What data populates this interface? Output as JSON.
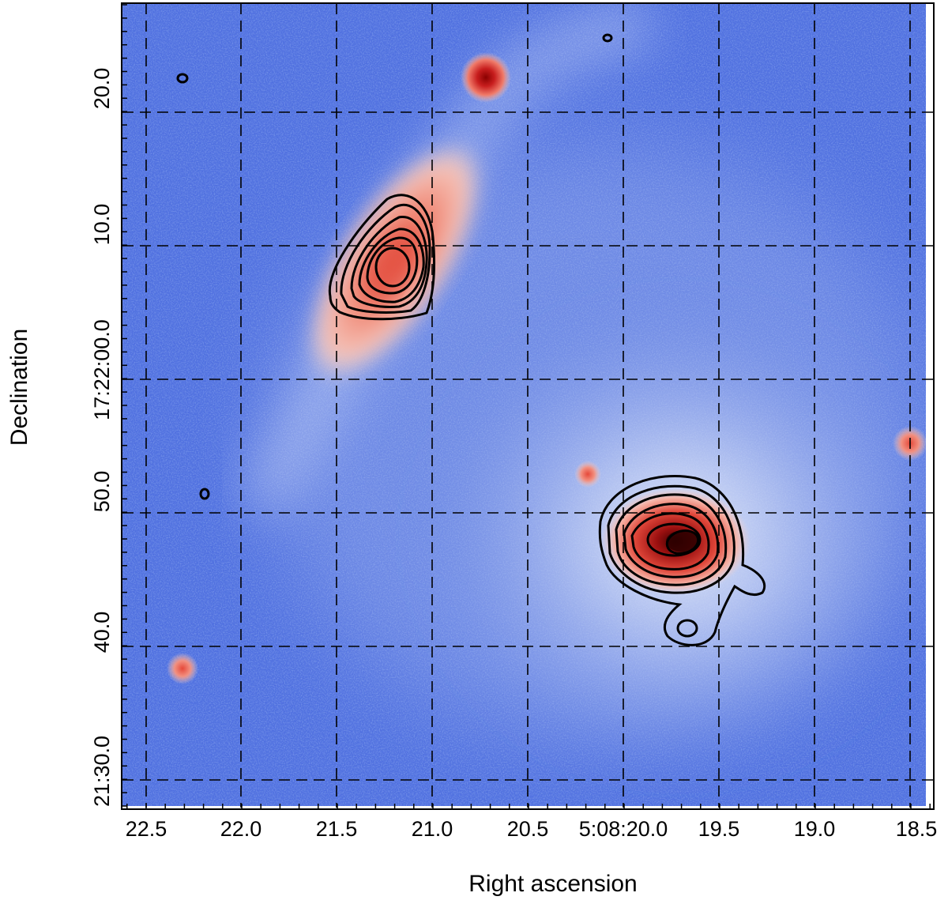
{
  "figure": {
    "x_axis_title": "Right ascension",
    "y_axis_title": "Declination",
    "x_ticks": [
      "22.5",
      "22.0",
      "21.5",
      "21.0",
      "20.5",
      "5:08:20.0",
      "19.5",
      "19.0",
      "18.5"
    ],
    "y_ticks": [
      "20.0",
      "10.0",
      "17:22:00.0",
      "50.0",
      "40.0",
      "21:30.0"
    ],
    "colormap": {
      "background": "#4466dd",
      "low": "#3355dd",
      "mid": "#f4f6fb",
      "high": "#e65a4a",
      "peak": "#8b0000"
    },
    "grid": "dashed",
    "contour_color": "#000000"
  }
}
